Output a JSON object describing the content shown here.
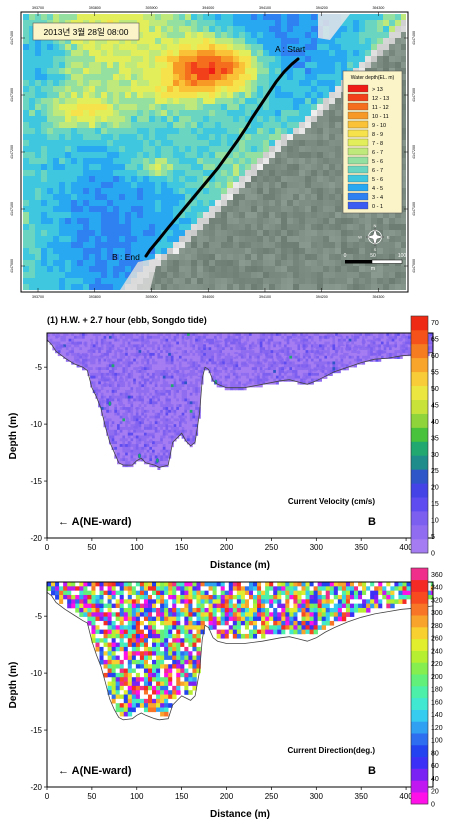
{
  "map": {
    "date_label": "2013년 3월 28일 08:00",
    "start_label": "A : Start",
    "end_label": "B : End",
    "x_ticks": [
      "393700",
      "393800",
      "393900",
      "394000",
      "394100",
      "394200",
      "394300"
    ],
    "y_ticks": [
      "4147400",
      "4147300",
      "4147200",
      "4147100",
      "4147000"
    ],
    "legend": {
      "title": "Water depth(EL. m)",
      "entries": [
        {
          "label": "> 13",
          "color": "#ee1c14"
        },
        {
          "label": "12 - 13",
          "color": "#f2411a"
        },
        {
          "label": "11 - 12",
          "color": "#f46e1e"
        },
        {
          "label": "10 - 11",
          "color": "#f79a25"
        },
        {
          "label": "9 - 10",
          "color": "#f9c237"
        },
        {
          "label": "8 - 9",
          "color": "#f6e24b"
        },
        {
          "label": "7 - 8",
          "color": "#e3ef5a"
        },
        {
          "label": "6 - 7",
          "color": "#bfe97a"
        },
        {
          "label": "5 - 6",
          "color": "#93e0a0"
        },
        {
          "label": "6 - 7",
          "color": "#6ad6c2"
        },
        {
          "label": "5 - 6",
          "color": "#3fc7e0"
        },
        {
          "label": "4 - 5",
          "color": "#28a8f0"
        },
        {
          "label": "3 - 4",
          "color": "#2f80f0"
        },
        {
          "label": "0 - 1",
          "color": "#3a5cf0"
        }
      ]
    },
    "scale": {
      "ticks": [
        "0",
        "50",
        "100"
      ],
      "unit": "m"
    },
    "compass": {
      "n": "N",
      "s": "S",
      "e": "E",
      "w": "W"
    }
  },
  "chart_data": [
    {
      "type": "heatmap",
      "title": "(1) H.W. + 2.7 hour (ebb, Songdo tide)",
      "xlabel": "Distance (m)",
      "ylabel": "Depth (m)",
      "xlim": [
        0,
        430
      ],
      "ylim": [
        -20,
        -2
      ],
      "x_ticks": [
        "0",
        "50",
        "100",
        "150",
        "200",
        "250",
        "300",
        "350",
        "400"
      ],
      "y_ticks": [
        "-5",
        "-10",
        "-15",
        "-20"
      ],
      "annotation": "Current Velocity (cm/s)",
      "left_label": "A(NE-ward)",
      "right_label": "B",
      "colorbar": {
        "ticks": [
          "0",
          "5",
          "10",
          "15",
          "20",
          "25",
          "30",
          "35",
          "40",
          "45",
          "50",
          "55",
          "60",
          "65",
          "70"
        ],
        "colors": [
          "#a57cf2",
          "#8f6cf0",
          "#7d5ff0",
          "#5f4cf0",
          "#4444e6",
          "#2e56c8",
          "#1f8c8c",
          "#20a870",
          "#48c23c",
          "#8fd43a",
          "#c8e23a",
          "#ece640",
          "#f7cc38",
          "#f8a52c",
          "#f67c22",
          "#f4521a",
          "#ef2a14"
        ],
        "min": 0,
        "max": 72
      },
      "bottom_profile": [
        [
          0,
          -2.6
        ],
        [
          5,
          -3
        ],
        [
          10,
          -3.6
        ],
        [
          20,
          -4.2
        ],
        [
          30,
          -4.7
        ],
        [
          40,
          -5
        ],
        [
          45,
          -5.3
        ],
        [
          50,
          -6.8
        ],
        [
          55,
          -7.6
        ],
        [
          60,
          -8.6
        ],
        [
          65,
          -10.2
        ],
        [
          70,
          -11.6
        ],
        [
          75,
          -12.5
        ],
        [
          80,
          -13.4
        ],
        [
          85,
          -13.6
        ],
        [
          95,
          -13.6
        ],
        [
          100,
          -13.2
        ],
        [
          105,
          -13
        ],
        [
          110,
          -13.4
        ],
        [
          120,
          -13.6
        ],
        [
          125,
          -13.8
        ],
        [
          135,
          -13.6
        ],
        [
          140,
          -11.6
        ],
        [
          145,
          -11.2
        ],
        [
          150,
          -10.8
        ],
        [
          155,
          -11.5
        ],
        [
          160,
          -11.9
        ],
        [
          165,
          -11.6
        ],
        [
          170,
          -9
        ],
        [
          173,
          -6
        ],
        [
          176,
          -5
        ],
        [
          180,
          -5.2
        ],
        [
          185,
          -6.2
        ],
        [
          190,
          -6.5
        ],
        [
          200,
          -6.8
        ],
        [
          220,
          -6.8
        ],
        [
          240,
          -6.5
        ],
        [
          260,
          -6.2
        ],
        [
          270,
          -6.1
        ],
        [
          280,
          -6.3
        ],
        [
          290,
          -6.5
        ],
        [
          300,
          -6.2
        ],
        [
          310,
          -5.8
        ],
        [
          320,
          -5.4
        ],
        [
          335,
          -5
        ],
        [
          350,
          -4.6
        ],
        [
          365,
          -4.3
        ],
        [
          380,
          -4.2
        ],
        [
          395,
          -4
        ],
        [
          410,
          -3.9
        ],
        [
          420,
          -3.8
        ],
        [
          430,
          -3.7
        ]
      ]
    },
    {
      "type": "heatmap",
      "xlabel": "Distance (m)",
      "ylabel": "Depth (m)",
      "xlim": [
        0,
        430
      ],
      "ylim": [
        -20,
        -2
      ],
      "x_ticks": [
        "0",
        "50",
        "100",
        "150",
        "200",
        "250",
        "300",
        "350",
        "400"
      ],
      "y_ticks": [
        "-5",
        "-10",
        "-15",
        "-20"
      ],
      "annotation": "Current Direction(deg.)",
      "left_label": "A(NE-ward)",
      "right_label": "B",
      "colorbar": {
        "ticks": [
          "0",
          "20",
          "40",
          "60",
          "80",
          "100",
          "120",
          "140",
          "160",
          "180",
          "200",
          "220",
          "240",
          "260",
          "280",
          "300",
          "320",
          "340",
          "360"
        ],
        "colors": [
          "#ff10e8",
          "#c018f0",
          "#7a22f4",
          "#3d30f6",
          "#2342f0",
          "#2d6ef0",
          "#2fa0f2",
          "#36ccf0",
          "#40e8d2",
          "#4cf0a8",
          "#62f07a",
          "#86ee4e",
          "#b6ee32",
          "#e0ee2e",
          "#f8d030",
          "#f8a42c",
          "#f87426",
          "#f84a20",
          "#f42a26",
          "#ee2e8a"
        ],
        "min": 0,
        "max": 370
      },
      "bottom_profile": [
        [
          0,
          -2.9
        ],
        [
          5,
          -3.2
        ],
        [
          10,
          -3.8
        ],
        [
          20,
          -4.4
        ],
        [
          30,
          -4.9
        ],
        [
          40,
          -5.4
        ],
        [
          45,
          -5.6
        ],
        [
          50,
          -7.2
        ],
        [
          55,
          -8.4
        ],
        [
          60,
          -9.4
        ],
        [
          65,
          -10.8
        ],
        [
          70,
          -12.3
        ],
        [
          75,
          -13.2
        ],
        [
          80,
          -13.9
        ],
        [
          85,
          -14.1
        ],
        [
          95,
          -14
        ],
        [
          100,
          -13.7
        ],
        [
          105,
          -13.5
        ],
        [
          110,
          -13.7
        ],
        [
          120,
          -14
        ],
        [
          125,
          -14.1
        ],
        [
          135,
          -14
        ],
        [
          140,
          -12.8
        ],
        [
          145,
          -12.4
        ],
        [
          150,
          -12
        ],
        [
          160,
          -12.4
        ],
        [
          165,
          -12
        ],
        [
          170,
          -9.8
        ],
        [
          173,
          -7
        ],
        [
          176,
          -5.8
        ],
        [
          180,
          -6
        ],
        [
          185,
          -6.9
        ],
        [
          190,
          -7.2
        ],
        [
          200,
          -7.4
        ],
        [
          220,
          -7.4
        ],
        [
          240,
          -7.2
        ],
        [
          260,
          -6.9
        ],
        [
          270,
          -6.8
        ],
        [
          280,
          -7
        ],
        [
          290,
          -7.2
        ],
        [
          300,
          -6.9
        ],
        [
          310,
          -6.4
        ],
        [
          320,
          -6
        ],
        [
          335,
          -5.5
        ],
        [
          350,
          -5.1
        ],
        [
          365,
          -4.8
        ],
        [
          380,
          -4.6
        ],
        [
          395,
          -4.4
        ],
        [
          410,
          -4.3
        ],
        [
          420,
          -4.2
        ],
        [
          430,
          -4.1
        ]
      ]
    }
  ]
}
